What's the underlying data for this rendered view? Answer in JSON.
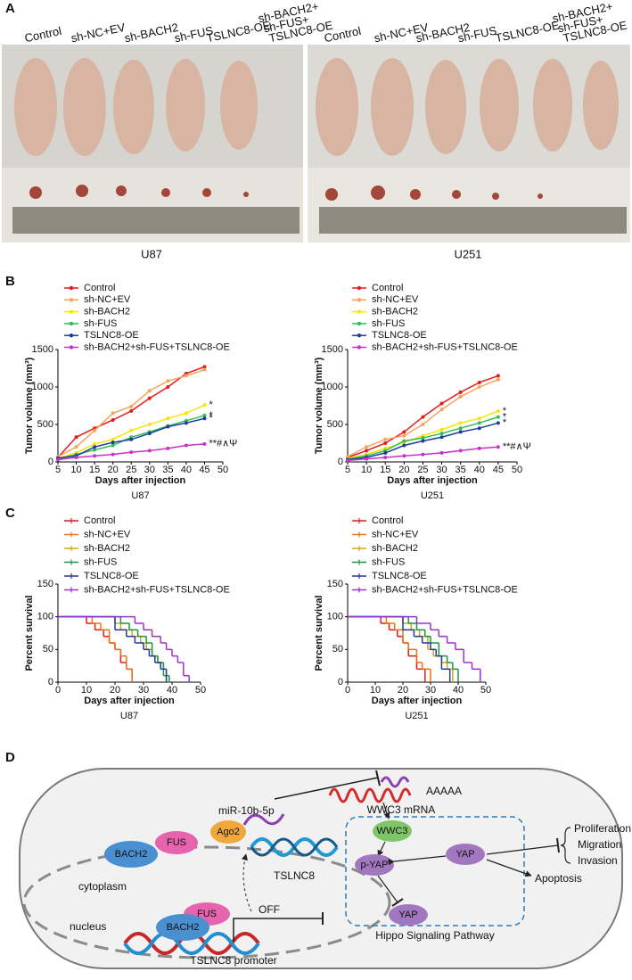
{
  "panel_labels": [
    "A",
    "B",
    "C",
    "D"
  ],
  "panel_a": {
    "left": {
      "labels": [
        "Control",
        "sh-NC+EV",
        "sh-BACH2",
        "sh-FUS",
        "TSLNC8-OE"
      ],
      "combo_label": [
        "sh-BACH2+",
        "sh-FUS+",
        "TSLNC8-OE"
      ],
      "cell_line": "U87"
    },
    "right": {
      "labels": [
        "Control",
        "sh-NC+EV",
        "sh-BACH2",
        "sh-FUS",
        "TSLNC8-OE"
      ],
      "combo_label": [
        "sh-BACH2+",
        "sh-FUS+",
        "TSLNC8-OE"
      ],
      "cell_line": "U251"
    }
  },
  "chart_data": [
    {
      "type": "line",
      "caption": "U87",
      "x_label": "Days after injection",
      "y_label": "Tumor volume (mm³)",
      "x": [
        5,
        10,
        15,
        20,
        25,
        30,
        35,
        40,
        45
      ],
      "xlim": [
        5,
        50
      ],
      "xticks": [
        5,
        10,
        15,
        20,
        25,
        30,
        35,
        40,
        45,
        50
      ],
      "ylim": [
        0,
        1500
      ],
      "yticks": [
        0,
        500,
        1000,
        1500
      ],
      "series": [
        {
          "name": "Control",
          "color": "#e41a1c",
          "values": [
            60,
            330,
            450,
            560,
            680,
            850,
            1000,
            1180,
            1270
          ]
        },
        {
          "name": "sh-NC+EV",
          "color": "#f7a35c",
          "values": [
            70,
            200,
            420,
            650,
            740,
            950,
            1080,
            1150,
            1230
          ]
        },
        {
          "name": "sh-BACH2",
          "color": "#f5e60a",
          "values": [
            50,
            120,
            240,
            300,
            420,
            500,
            580,
            650,
            760
          ]
        },
        {
          "name": "sh-FUS",
          "color": "#2fbf5a",
          "values": [
            40,
            100,
            160,
            220,
            330,
            400,
            480,
            550,
            620
          ]
        },
        {
          "name": "TSLNC8-OE",
          "color": "#1f3b9b",
          "values": [
            50,
            80,
            200,
            260,
            300,
            380,
            470,
            520,
            580
          ]
        },
        {
          "name": "sh-BACH2+sh-FUS+TSLNC8-OE",
          "color": "#c832c8",
          "values": [
            30,
            60,
            80,
            100,
            130,
            150,
            180,
            220,
            240
          ]
        }
      ],
      "annotations": [
        {
          "text": "*",
          "series": "sh-BACH2"
        },
        {
          "text": "*",
          "series": "sh-FUS"
        },
        {
          "text": "*",
          "series": "TSLNC8-OE"
        },
        {
          "text": "**#∧Ψ",
          "series": "sh-BACH2+sh-FUS+TSLNC8-OE"
        }
      ]
    },
    {
      "type": "line",
      "caption": "U251",
      "x_label": "Days after injection",
      "y_label": "Tumor volume (mm³)",
      "x": [
        5,
        10,
        15,
        20,
        25,
        30,
        35,
        40,
        45
      ],
      "xlim": [
        5,
        50
      ],
      "xticks": [
        5,
        10,
        15,
        20,
        25,
        30,
        35,
        40,
        45,
        50
      ],
      "ylim": [
        0,
        1500
      ],
      "yticks": [
        0,
        500,
        1000,
        1500
      ],
      "series": [
        {
          "name": "Control",
          "color": "#e41a1c",
          "values": [
            60,
            150,
            250,
            400,
            600,
            780,
            930,
            1060,
            1150
          ]
        },
        {
          "name": "sh-NC+EV",
          "color": "#f7a35c",
          "values": [
            70,
            200,
            300,
            350,
            500,
            700,
            870,
            1000,
            1100
          ]
        },
        {
          "name": "sh-BACH2",
          "color": "#f5e60a",
          "values": [
            50,
            100,
            180,
            260,
            350,
            430,
            520,
            580,
            680
          ]
        },
        {
          "name": "sh-FUS",
          "color": "#2fbf5a",
          "values": [
            40,
            80,
            150,
            280,
            320,
            380,
            450,
            520,
            600
          ]
        },
        {
          "name": "TSLNC8-OE",
          "color": "#1f3b9b",
          "values": [
            30,
            60,
            120,
            220,
            280,
            330,
            400,
            450,
            520
          ]
        },
        {
          "name": "sh-BACH2+sh-FUS+TSLNC8-OE",
          "color": "#c832c8",
          "values": [
            20,
            40,
            60,
            80,
            100,
            120,
            150,
            180,
            200
          ]
        }
      ],
      "annotations": [
        {
          "text": "*",
          "series": "sh-BACH2"
        },
        {
          "text": "*",
          "series": "sh-FUS"
        },
        {
          "text": "*",
          "series": "TSLNC8-OE"
        },
        {
          "text": "**#∧Ψ",
          "series": "sh-BACH2+sh-FUS+TSLNC8-OE"
        }
      ]
    },
    {
      "type": "step",
      "caption": "U87",
      "x_label": "Days after injection",
      "y_label": "Percent survival",
      "xlim": [
        0,
        50
      ],
      "xticks": [
        0,
        10,
        20,
        30,
        40,
        50
      ],
      "ylim": [
        0,
        150
      ],
      "yticks": [
        0,
        50,
        100,
        150
      ],
      "series": [
        {
          "name": "Control",
          "color": "#e41a1c",
          "x": [
            0,
            10,
            13,
            16,
            18,
            20,
            22,
            24,
            26
          ],
          "values": [
            100,
            90,
            80,
            70,
            60,
            50,
            30,
            20,
            0
          ]
        },
        {
          "name": "sh-NC+EV",
          "color": "#e8731a",
          "x": [
            0,
            12,
            15,
            18,
            20,
            22,
            24,
            26
          ],
          "values": [
            100,
            90,
            80,
            60,
            50,
            40,
            20,
            0
          ]
        },
        {
          "name": "sh-BACH2",
          "color": "#d4a514",
          "x": [
            0,
            20,
            22,
            26,
            29,
            31,
            33,
            35,
            37,
            38
          ],
          "values": [
            100,
            90,
            80,
            70,
            60,
            50,
            40,
            30,
            20,
            0
          ]
        },
        {
          "name": "sh-FUS",
          "color": "#1a9641",
          "x": [
            0,
            22,
            25,
            28,
            31,
            33,
            35,
            37,
            39
          ],
          "values": [
            100,
            90,
            80,
            70,
            60,
            40,
            30,
            10,
            0
          ]
        },
        {
          "name": "TSLNC8-OE",
          "color": "#1f3b9b",
          "x": [
            0,
            20,
            24,
            27,
            30,
            32,
            34,
            36,
            38
          ],
          "values": [
            100,
            80,
            70,
            60,
            50,
            40,
            30,
            20,
            0
          ]
        },
        {
          "name": "sh-BACH2+sh-FUS+TSLNC8-OE",
          "color": "#9933cc",
          "x": [
            0,
            27,
            30,
            33,
            36,
            38,
            40,
            42,
            44,
            46
          ],
          "values": [
            100,
            90,
            80,
            70,
            60,
            50,
            40,
            30,
            10,
            0
          ]
        }
      ]
    },
    {
      "type": "step",
      "caption": "U251",
      "x_label": "Days after injection",
      "y_label": "Percent survival",
      "xlim": [
        0,
        50
      ],
      "xticks": [
        0,
        10,
        20,
        30,
        40,
        50
      ],
      "ylim": [
        0,
        150
      ],
      "yticks": [
        0,
        50,
        100,
        150
      ],
      "series": [
        {
          "name": "Control",
          "color": "#e41a1c",
          "x": [
            0,
            12,
            15,
            18,
            20,
            22,
            25,
            28
          ],
          "values": [
            100,
            90,
            80,
            70,
            60,
            40,
            20,
            0
          ]
        },
        {
          "name": "sh-NC+EV",
          "color": "#e8731a",
          "x": [
            0,
            14,
            17,
            20,
            22,
            25,
            27,
            30
          ],
          "values": [
            100,
            90,
            80,
            60,
            50,
            30,
            20,
            0
          ]
        },
        {
          "name": "sh-BACH2",
          "color": "#d4a514",
          "x": [
            0,
            20,
            23,
            26,
            29,
            31,
            34,
            36,
            38
          ],
          "values": [
            100,
            90,
            80,
            70,
            50,
            40,
            30,
            20,
            0
          ]
        },
        {
          "name": "sh-FUS",
          "color": "#1a9641",
          "x": [
            0,
            22,
            25,
            28,
            30,
            33,
            36,
            38,
            40
          ],
          "values": [
            100,
            90,
            80,
            70,
            60,
            40,
            30,
            20,
            0
          ]
        },
        {
          "name": "TSLNC8-OE",
          "color": "#1f3b9b",
          "x": [
            0,
            20,
            24,
            27,
            30,
            32,
            34,
            37
          ],
          "values": [
            100,
            80,
            70,
            60,
            50,
            40,
            20,
            0
          ]
        },
        {
          "name": "sh-BACH2+sh-FUS+TSLNC8-OE",
          "color": "#9933cc",
          "x": [
            0,
            25,
            30,
            33,
            36,
            39,
            42,
            45,
            48
          ],
          "values": [
            100,
            90,
            80,
            70,
            60,
            50,
            30,
            20,
            0
          ]
        }
      ]
    }
  ],
  "panel_d": {
    "mirna": "miR-10b-5p",
    "polya": "AAAAA",
    "mrna": "WWC3 mRNA",
    "ago2": "Ago2",
    "lncrna": "TSLNC8",
    "cyto_bach2": "BACH2",
    "cyto_fus": "FUS",
    "cytoplasm": "cytoplasm",
    "nucleus": "nucleus",
    "nuc_fus": "FUS",
    "nuc_bach2": "BACH2",
    "off": "OFF",
    "promoter": "TSLNC8 promoter",
    "wwc3": "WWC3",
    "p_yap": "p-YAP",
    "yap": "YAP",
    "yap_bottom": "YAP",
    "pathway": "Hippo Signaling Pathway",
    "outcomes": [
      "Proliferation",
      "Migration",
      "Invasion"
    ],
    "apoptosis": "Apoptosis"
  }
}
